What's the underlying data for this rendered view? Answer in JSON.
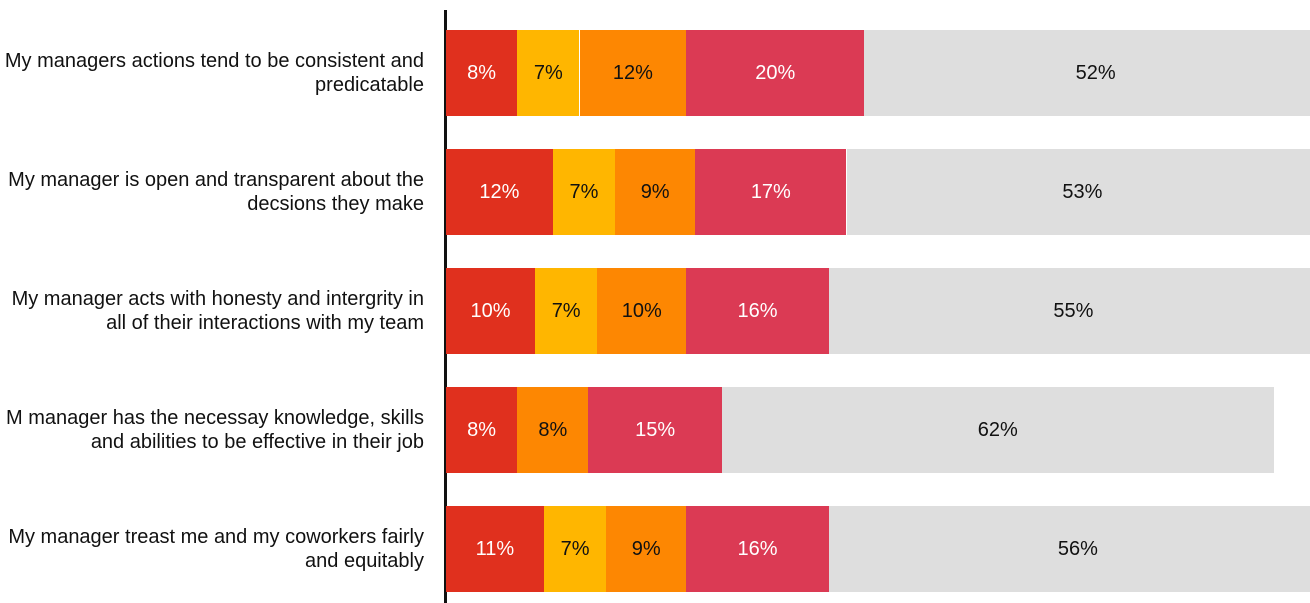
{
  "chart_data": {
    "type": "bar",
    "orientation": "horizontal",
    "stacked": true,
    "title": "",
    "xlabel": "",
    "ylabel": "",
    "xlim": [
      0,
      100
    ],
    "grid": false,
    "legend": "none",
    "categories": [
      "My managers actions tend to be consistent and predicatable",
      "My manager is open and transparent about the decsions they make",
      "My manager acts with honesty and intergrity in all of their interactions with my team",
      "M manager has the necessay knowledge, skills and abilities to be effective in their job",
      "My manager treast me and my coworkers fairly and equitably"
    ],
    "series": [
      {
        "color": "#e0301e",
        "label_color": "#ffffff",
        "values": [
          8,
          12,
          10,
          8,
          11
        ]
      },
      {
        "color": "#ffb600",
        "label_color": "#111111",
        "values": [
          7,
          7,
          7,
          null,
          7
        ]
      },
      {
        "color": "#fd8702",
        "label_color": "#111111",
        "values": [
          12,
          9,
          10,
          8,
          9
        ]
      },
      {
        "color": "#db3a54",
        "label_color": "#ffffff",
        "values": [
          20,
          17,
          16,
          15,
          16
        ]
      },
      {
        "color": "#dedede",
        "label_color": "#111111",
        "values": [
          52,
          53,
          55,
          62,
          56
        ]
      }
    ],
    "value_labels": [
      [
        "8%",
        "7%",
        "12%",
        "20%",
        "52%"
      ],
      [
        "12%",
        "7%",
        "9%",
        "17%",
        "53%"
      ],
      [
        "10%",
        "7%",
        "10%",
        "16%",
        "55%"
      ],
      [
        "8%",
        "",
        "8%",
        "15%",
        "62%"
      ],
      [
        "11%",
        "7%",
        "9%",
        "16%",
        "56%"
      ]
    ]
  }
}
